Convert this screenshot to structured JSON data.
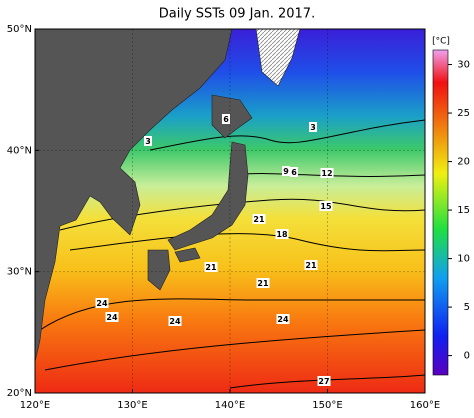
{
  "title": "Daily SSTs 09 Jan. 2017.",
  "map": {
    "xlim": [
      120,
      160
    ],
    "ylim": [
      20,
      50
    ],
    "xticks": [
      {
        "value": 120,
        "label": "120°E"
      },
      {
        "value": 130,
        "label": "130°E"
      },
      {
        "value": 140,
        "label": "140°E"
      },
      {
        "value": 150,
        "label": "150°E"
      },
      {
        "value": 160,
        "label": "160°E"
      }
    ],
    "yticks": [
      {
        "value": 20,
        "label": "20°N"
      },
      {
        "value": 30,
        "label": "30°N"
      },
      {
        "value": 40,
        "label": "40°N"
      },
      {
        "value": 50,
        "label": "50°N"
      }
    ],
    "contour_labels": [
      3,
      6,
      3,
      9,
      6,
      12,
      15,
      21,
      18,
      21,
      21,
      21,
      24,
      24,
      24,
      24,
      27
    ]
  },
  "colorbar": {
    "unit": "[°C]",
    "lim": [
      -2,
      31.5
    ],
    "ticks": [
      0,
      5,
      10,
      15,
      20,
      25,
      30
    ]
  }
}
